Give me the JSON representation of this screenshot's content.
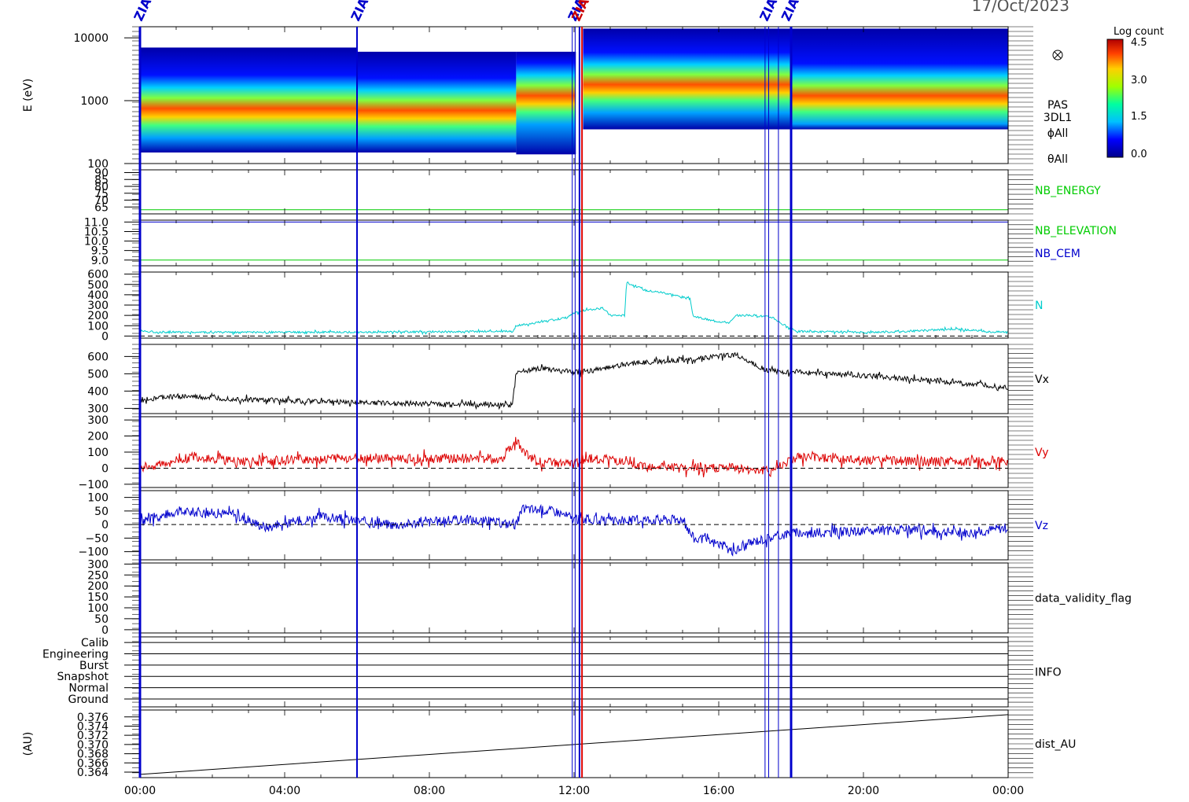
{
  "header": {
    "date": "17/Oct/2023"
  },
  "colorbar": {
    "title": "Log count",
    "ticks": [
      "4.5",
      "3.0",
      "1.5",
      "0.0"
    ]
  },
  "event_labels": [
    {
      "text": "ZIAS",
      "time_h": 0.0,
      "color": "#0000cc"
    },
    {
      "text": "ZIAS",
      "time_h": 6.0,
      "color": "#0000cc"
    },
    {
      "text": "ZIAS",
      "time_h": 12.0,
      "color": "#0000cc"
    },
    {
      "text": "ZIAS",
      "time_h": 12.1,
      "color": "#cc0000"
    },
    {
      "text": "ZIAS",
      "time_h": 17.3,
      "color": "#0000cc"
    },
    {
      "text": "ZIAS",
      "time_h": 17.9,
      "color": "#0000cc"
    }
  ],
  "event_lines": [
    {
      "time_h": 0.0,
      "color": "#0000cc",
      "width": 3
    },
    {
      "time_h": 6.0,
      "color": "#0000cc",
      "width": 2
    },
    {
      "time_h": 11.95,
      "color": "#0000cc",
      "width": 1
    },
    {
      "time_h": 12.03,
      "color": "#0000cc",
      "width": 1
    },
    {
      "time_h": 12.15,
      "color": "#0000cc",
      "width": 2
    },
    {
      "time_h": 12.22,
      "color": "#dd0000",
      "width": 2
    },
    {
      "time_h": 17.28,
      "color": "#0000cc",
      "width": 1
    },
    {
      "time_h": 17.38,
      "color": "#0000cc",
      "width": 1
    },
    {
      "time_h": 17.65,
      "color": "#0000cc",
      "width": 1
    },
    {
      "time_h": 18.0,
      "color": "#0000cc",
      "width": 3
    }
  ],
  "chart_data": {
    "type": "line",
    "x_axis": {
      "range_h": [
        0,
        24
      ],
      "ticks": [
        "00:00",
        "04:00",
        "08:00",
        "12:00",
        "16:00",
        "20:00",
        "00:00"
      ]
    },
    "panels": [
      {
        "id": "energy",
        "type": "heatmap",
        "ylabel": "E (eV)",
        "log": true,
        "ylim": [
          100,
          15000
        ],
        "ticks": [
          {
            "v": 10000,
            "t": "10000"
          },
          {
            "v": 1000,
            "t": "1000"
          },
          {
            "v": 100,
            "t": "100"
          }
        ],
        "right_labels": [
          {
            "text": "PAS",
            "color": "#000000"
          },
          {
            "text": "3DL1",
            "color": "#000000"
          },
          {
            "text": "ϕAll",
            "color": "#000000"
          },
          {
            "text": "θAll",
            "color": "#000000"
          }
        ],
        "spectrogram": {
          "segments": [
            {
              "t0": 0.0,
              "t1": 6.0,
              "emin": 150,
              "emax": 7000,
              "peak": 750
            },
            {
              "t0": 6.0,
              "t1": 10.4,
              "emin": 150,
              "emax": 6000,
              "peak": 700
            },
            {
              "t0": 10.4,
              "t1": 12.05,
              "emin": 140,
              "emax": 6000,
              "peak": 1200
            },
            {
              "t0": 12.25,
              "t1": 18.0,
              "emin": 350,
              "emax": 14000,
              "peak": 1800
            },
            {
              "t0": 18.0,
              "t1": 24.0,
              "emin": 350,
              "emax": 14000,
              "peak": 1200
            }
          ]
        }
      },
      {
        "id": "nb_energy",
        "ylim": [
          60,
          92
        ],
        "ticks": [
          {
            "v": 90,
            "t": "90"
          },
          {
            "v": 85,
            "t": "85"
          },
          {
            "v": 80,
            "t": "80"
          },
          {
            "v": 75,
            "t": "75"
          },
          {
            "v": 70,
            "t": "70"
          },
          {
            "v": 65,
            "t": "65"
          }
        ],
        "right_labels": [
          {
            "text": "NB_ENERGY",
            "color": "#00cc00"
          }
        ],
        "series": [
          {
            "name": "NB_ENERGY",
            "color": "#00cc00",
            "const": 63
          }
        ]
      },
      {
        "id": "nb_elev",
        "ylim": [
          8.7,
          11.1
        ],
        "ticks": [
          {
            "v": 11.0,
            "t": "11.0"
          },
          {
            "v": 10.5,
            "t": "10.5"
          },
          {
            "v": 10.0,
            "t": "10.0"
          },
          {
            "v": 9.5,
            "t": "9.5"
          },
          {
            "v": 9.0,
            "t": "9.0"
          }
        ],
        "right_labels": [
          {
            "text": "NB_ELEVATION",
            "color": "#00cc00"
          },
          {
            "text": "NB_CEM",
            "color": "#0000cc"
          }
        ],
        "series": [
          {
            "name": "NB_ELEVATION",
            "color": "#00cc00",
            "const": 9.0
          },
          {
            "name": "NB_CEM",
            "color": "#0000cc",
            "const": 11.0
          }
        ]
      },
      {
        "id": "density",
        "ylim": [
          -20,
          620
        ],
        "zero_line": true,
        "ticks": [
          {
            "v": 600,
            "t": "600"
          },
          {
            "v": 500,
            "t": "500"
          },
          {
            "v": 400,
            "t": "400"
          },
          {
            "v": 300,
            "t": "300"
          },
          {
            "v": 200,
            "t": "200"
          },
          {
            "v": 100,
            "t": "100"
          },
          {
            "v": 0,
            "t": "0"
          }
        ],
        "right_labels": [
          {
            "text": "N",
            "color": "#00cccc"
          }
        ],
        "series": [
          {
            "name": "N",
            "color": "#00cccc",
            "noise": 10,
            "points": [
              [
                0,
                50
              ],
              [
                0.5,
                38
              ],
              [
                3,
                35
              ],
              [
                6,
                38
              ],
              [
                8,
                40
              ],
              [
                10.3,
                45
              ],
              [
                10.4,
                100
              ],
              [
                11,
                130
              ],
              [
                11.8,
                180
              ],
              [
                12.0,
                220
              ],
              [
                12.3,
                250
              ],
              [
                12.8,
                270
              ],
              [
                13.0,
                200
              ],
              [
                13.4,
                200
              ],
              [
                13.45,
                520
              ],
              [
                14,
                440
              ],
              [
                14.5,
                420
              ],
              [
                15.2,
                360
              ],
              [
                15.3,
                190
              ],
              [
                15.8,
                150
              ],
              [
                16.3,
                130
              ],
              [
                16.5,
                200
              ],
              [
                17.0,
                200
              ],
              [
                17.5,
                180
              ],
              [
                17.9,
                80
              ],
              [
                18.2,
                45
              ],
              [
                20,
                35
              ],
              [
                21.5,
                50
              ],
              [
                22.5,
                70
              ],
              [
                23.5,
                40
              ],
              [
                24,
                40
              ]
            ]
          }
        ]
      },
      {
        "id": "vx",
        "ylim": [
          270,
          670
        ],
        "ticks": [
          {
            "v": 600,
            "t": "600"
          },
          {
            "v": 500,
            "t": "500"
          },
          {
            "v": 400,
            "t": "400"
          },
          {
            "v": 300,
            "t": "300"
          }
        ],
        "right_labels": [
          {
            "text": "Vx",
            "color": "#000000"
          }
        ],
        "series": [
          {
            "name": "Vx",
            "color": "#000000",
            "noise": 15,
            "points": [
              [
                0,
                350
              ],
              [
                1,
                370
              ],
              [
                3,
                350
              ],
              [
                5,
                340
              ],
              [
                7,
                330
              ],
              [
                10.3,
                320
              ],
              [
                10.4,
                510
              ],
              [
                11,
                530
              ],
              [
                12,
                510
              ],
              [
                12.3,
                510
              ],
              [
                13.5,
                560
              ],
              [
                15,
                580
              ],
              [
                16.5,
                610
              ],
              [
                17.3,
                520
              ],
              [
                18,
                510
              ],
              [
                20,
                490
              ],
              [
                22,
                460
              ],
              [
                24,
                420
              ]
            ]
          }
        ]
      },
      {
        "id": "vy",
        "ylim": [
          -120,
          320
        ],
        "zero_line": true,
        "ticks": [
          {
            "v": 300,
            "t": "300"
          },
          {
            "v": 200,
            "t": "200"
          },
          {
            "v": 100,
            "t": "100"
          },
          {
            "v": 0,
            "t": "0"
          },
          {
            "v": -100,
            "t": "−100"
          }
        ],
        "right_labels": [
          {
            "text": "Vy",
            "color": "#dd0000"
          }
        ],
        "series": [
          {
            "name": "Vy",
            "color": "#dd0000",
            "noise": 30,
            "points": [
              [
                0,
                0
              ],
              [
                1.5,
                70
              ],
              [
                3,
                40
              ],
              [
                5,
                60
              ],
              [
                7,
                60
              ],
              [
                10,
                60
              ],
              [
                10.4,
                180
              ],
              [
                10.6,
                100
              ],
              [
                11,
                40
              ],
              [
                12,
                20
              ],
              [
                12.3,
                60
              ],
              [
                13,
                60
              ],
              [
                13.5,
                20
              ],
              [
                15,
                0
              ],
              [
                16.5,
                0
              ],
              [
                17.4,
                -20
              ],
              [
                17.9,
                40
              ],
              [
                18.2,
                70
              ],
              [
                20,
                50
              ],
              [
                22,
                40
              ],
              [
                24,
                40
              ]
            ]
          }
        ]
      },
      {
        "id": "vz",
        "ylim": [
          -130,
          125
        ],
        "zero_line": true,
        "ticks": [
          {
            "v": 100,
            "t": "100"
          },
          {
            "v": 50,
            "t": "50"
          },
          {
            "v": 0,
            "t": "0"
          },
          {
            "v": -50,
            "t": "−50"
          },
          {
            "v": -100,
            "t": "−100"
          }
        ],
        "right_labels": [
          {
            "text": "Vz",
            "color": "#0000cc"
          }
        ],
        "series": [
          {
            "name": "Vz",
            "color": "#0000cc",
            "noise": 18,
            "points": [
              [
                0,
                10
              ],
              [
                1,
                50
              ],
              [
                2.5,
                40
              ],
              [
                3.5,
                -10
              ],
              [
                5,
                30
              ],
              [
                7,
                0
              ],
              [
                9,
                20
              ],
              [
                10.4,
                0
              ],
              [
                10.6,
                60
              ],
              [
                11.5,
                50
              ],
              [
                12,
                20
              ],
              [
                12.3,
                20
              ],
              [
                13,
                10
              ],
              [
                14,
                20
              ],
              [
                15,
                20
              ],
              [
                15.3,
                -50
              ],
              [
                16,
                -70
              ],
              [
                16.4,
                -100
              ],
              [
                17,
                -60
              ],
              [
                18,
                -30
              ],
              [
                19,
                -30
              ],
              [
                21,
                -20
              ],
              [
                23,
                -30
              ],
              [
                24,
                -10
              ]
            ]
          }
        ]
      },
      {
        "id": "validity",
        "ylim": [
          -15,
          305
        ],
        "ticks": [
          {
            "v": 300,
            "t": "300"
          },
          {
            "v": 250,
            "t": "250"
          },
          {
            "v": 200,
            "t": "200"
          },
          {
            "v": 150,
            "t": "150"
          },
          {
            "v": 100,
            "t": "100"
          },
          {
            "v": 50,
            "t": "50"
          },
          {
            "v": 0,
            "t": "0"
          }
        ],
        "right_labels": [
          {
            "text": "data_validity_flag",
            "color": "#000000"
          }
        ],
        "series": []
      },
      {
        "id": "info",
        "ylim": [
          -0.7,
          5.5
        ],
        "gridlines": true,
        "ticks": [
          {
            "v": 5,
            "t": "Calib"
          },
          {
            "v": 4,
            "t": "Engineering"
          },
          {
            "v": 3,
            "t": "Burst"
          },
          {
            "v": 2,
            "t": "Snapshot"
          },
          {
            "v": 1,
            "t": "Normal"
          },
          {
            "v": 0,
            "t": "Ground"
          }
        ],
        "right_labels": [
          {
            "text": "INFO",
            "color": "#000000"
          }
        ],
        "series": []
      },
      {
        "id": "dist",
        "ylabel": "(AU)",
        "ylim": [
          0.3628,
          0.3775
        ],
        "ticks": [
          {
            "v": 0.376,
            "t": "0.376"
          },
          {
            "v": 0.374,
            "t": "0.374"
          },
          {
            "v": 0.372,
            "t": "0.372"
          },
          {
            "v": 0.37,
            "t": "0.370"
          },
          {
            "v": 0.368,
            "t": "0.368"
          },
          {
            "v": 0.366,
            "t": "0.366"
          },
          {
            "v": 0.364,
            "t": "0.364"
          }
        ],
        "right_labels": [
          {
            "text": "dist_AU",
            "color": "#000000"
          }
        ],
        "series": [
          {
            "name": "dist_AU",
            "color": "#000000",
            "noise": 0,
            "points": [
              [
                0,
                0.3635
              ],
              [
                24,
                0.3765
              ]
            ]
          }
        ]
      }
    ]
  }
}
